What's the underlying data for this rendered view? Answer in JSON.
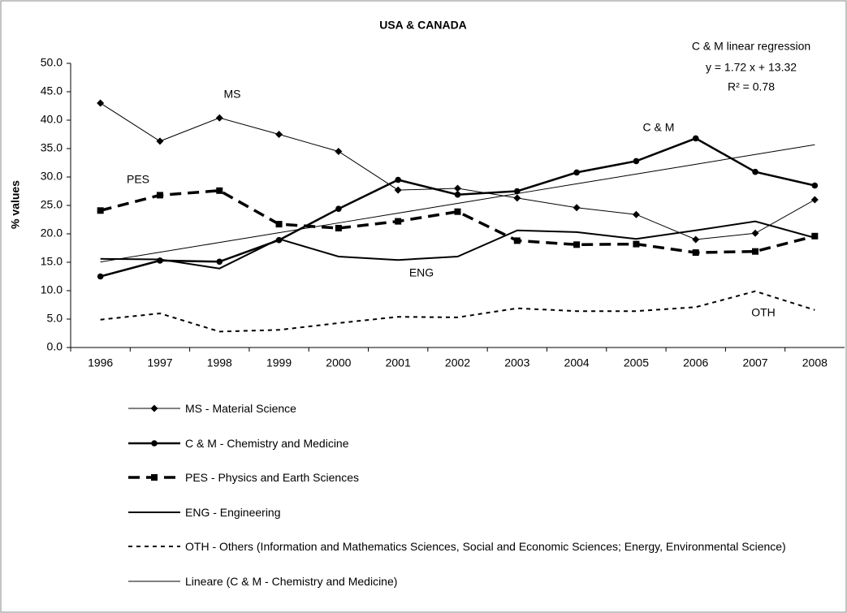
{
  "chart_data": {
    "type": "line",
    "title": "USA & CANADA",
    "y_label": "% values",
    "categories": [
      "1996",
      "1997",
      "1998",
      "1999",
      "2000",
      "2001",
      "2002",
      "2003",
      "2004",
      "2005",
      "2006",
      "2007",
      "2008"
    ],
    "ylim": [
      0,
      50
    ],
    "yticks": [
      {
        "value": 0,
        "label": "0.0"
      },
      {
        "value": 5,
        "label": "5.0"
      },
      {
        "value": 10,
        "label": "10.0"
      },
      {
        "value": 15,
        "label": "15.0"
      },
      {
        "value": 20,
        "label": "20.0"
      },
      {
        "value": 25,
        "label": "25.0"
      },
      {
        "value": 30,
        "label": "30.0"
      },
      {
        "value": 35,
        "label": "35.0"
      },
      {
        "value": 40,
        "label": "40.0"
      },
      {
        "value": 45,
        "label": "45.0"
      },
      {
        "value": 50,
        "label": "50.0"
      }
    ],
    "grid": false,
    "series": [
      {
        "name": "MS - Material Science",
        "color": "#000000",
        "width": 1,
        "dash": "none",
        "marker": "diamond",
        "values": [
          43.0,
          36.3,
          40.4,
          37.5,
          34.5,
          27.7,
          28.0,
          26.3,
          24.6,
          23.4,
          19.0,
          20.1,
          26.0
        ]
      },
      {
        "name": "C & M - Chemistry and Medicine",
        "color": "#000000",
        "width": 2.5,
        "dash": "none",
        "marker": "circle",
        "values": [
          12.5,
          15.3,
          15.1,
          18.9,
          24.4,
          29.5,
          26.9,
          27.5,
          30.8,
          32.8,
          36.8,
          30.9,
          28.5
        ]
      },
      {
        "name": "PES - Physics and Earth Sciences",
        "color": "#000000",
        "width": 3.5,
        "dash": "14 8",
        "marker": "square",
        "values": [
          24.1,
          26.8,
          27.6,
          21.7,
          21.0,
          22.2,
          23.9,
          18.8,
          18.1,
          18.2,
          16.7,
          16.9,
          19.6
        ]
      },
      {
        "name": "ENG - Engineering",
        "color": "#000000",
        "width": 2,
        "dash": "none",
        "marker": "none",
        "values": [
          15.6,
          15.5,
          13.9,
          19.1,
          16.0,
          15.4,
          16.0,
          20.6,
          20.3,
          19.1,
          20.6,
          22.2,
          19.3
        ]
      },
      {
        "name": "OTH - Others (Information and Mathematics Sciences, Social and Economic Sciences; Energy, Environmental Science)",
        "color": "#000000",
        "width": 2,
        "dash": "5 5",
        "marker": "none",
        "values": [
          4.9,
          6.0,
          2.8,
          3.1,
          4.3,
          5.4,
          5.3,
          6.9,
          6.4,
          6.4,
          7.1,
          9.9,
          6.6
        ]
      },
      {
        "name": "Lineare (C & M - Chemistry and Medicine)",
        "color": "#000000",
        "width": 1,
        "dash": "none",
        "marker": "none",
        "values": [
          15.04,
          16.76,
          18.48,
          20.2,
          21.92,
          23.64,
          25.36,
          27.08,
          28.8,
          30.52,
          32.24,
          33.96,
          35.68
        ]
      }
    ],
    "annotations": [
      {
        "text": "MS"
      },
      {
        "text": "PES"
      },
      {
        "text": "C & M"
      },
      {
        "text": "ENG"
      },
      {
        "text": "OTH"
      },
      {
        "text": "C & M linear regression"
      },
      {
        "text": "y = 1.72 x + 13.32"
      },
      {
        "text": "R² = 0.78"
      }
    ]
  }
}
